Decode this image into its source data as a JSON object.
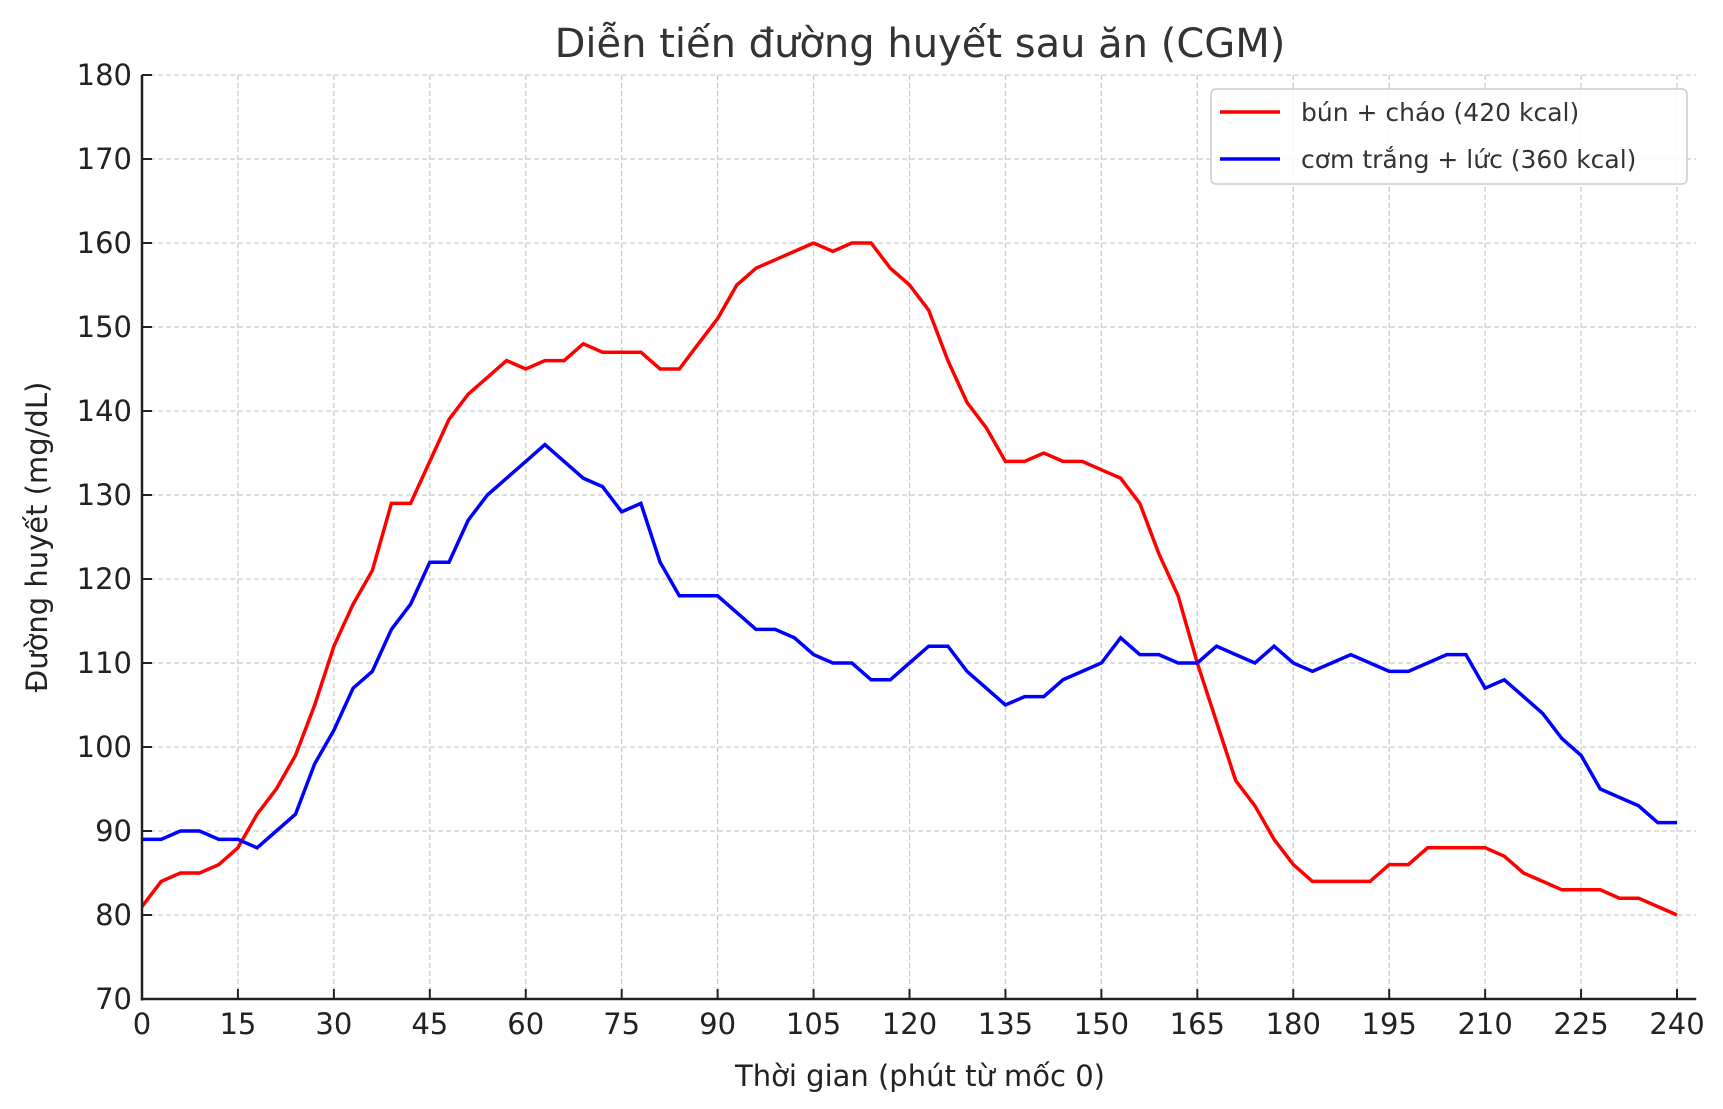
{
  "chart_data": {
    "type": "line",
    "title": "Diễn tiến đường huyết sau ăn (CGM)",
    "xlabel": "Thời gian (phút từ mốc 0)",
    "ylabel": "Đường huyết (mg/dL)",
    "xlim": [
      0,
      243
    ],
    "ylim": [
      70,
      180
    ],
    "xticks": [
      0,
      15,
      30,
      45,
      60,
      75,
      90,
      105,
      120,
      135,
      150,
      165,
      180,
      195,
      210,
      225,
      240
    ],
    "yticks": [
      70,
      80,
      90,
      100,
      110,
      120,
      130,
      140,
      150,
      160,
      170,
      180
    ],
    "grid": true,
    "legend_position": "upper right",
    "x": [
      0,
      3,
      6,
      9,
      12,
      15,
      18,
      21,
      24,
      27,
      30,
      33,
      36,
      39,
      42,
      45,
      48,
      51,
      54,
      57,
      60,
      63,
      66,
      69,
      72,
      75,
      78,
      81,
      84,
      87,
      90,
      93,
      96,
      99,
      102,
      105,
      108,
      111,
      114,
      117,
      120,
      123,
      126,
      129,
      132,
      135,
      138,
      141,
      144,
      147,
      150,
      153,
      156,
      159,
      162,
      165,
      168,
      171,
      174,
      177,
      180,
      183,
      186,
      189,
      192,
      195,
      198,
      201,
      204,
      207,
      210,
      213,
      216,
      219,
      222,
      225,
      228,
      231,
      234,
      237,
      240
    ],
    "series": [
      {
        "name": "bún + cháo (420 kcal)",
        "color": "#ff0000",
        "values": [
          81,
          84,
          85,
          85,
          86,
          88,
          92,
          95,
          99,
          105,
          112,
          117,
          121,
          129,
          129,
          134,
          139,
          142,
          144,
          146,
          145,
          146,
          146,
          148,
          147,
          147,
          147,
          145,
          145,
          148,
          151,
          155,
          157,
          158,
          159,
          160,
          159,
          160,
          160,
          157,
          155,
          152,
          146,
          141,
          138,
          134,
          134,
          135,
          134,
          134,
          133,
          132,
          129,
          123,
          118,
          110,
          103,
          96,
          93,
          89,
          86,
          84,
          84,
          84,
          84,
          86,
          86,
          88,
          88,
          88,
          88,
          87,
          85,
          84,
          83,
          83,
          83,
          82,
          82,
          81,
          80
        ]
      },
      {
        "name": "cơm trắng + lức (360 kcal)",
        "color": "#0000ff",
        "values": [
          89,
          89,
          90,
          90,
          89,
          89,
          88,
          90,
          92,
          98,
          102,
          107,
          109,
          114,
          117,
          122,
          122,
          127,
          130,
          132,
          134,
          136,
          134,
          132,
          131,
          128,
          129,
          122,
          118,
          118,
          118,
          116,
          114,
          114,
          113,
          111,
          110,
          110,
          108,
          108,
          110,
          112,
          112,
          109,
          107,
          105,
          106,
          106,
          108,
          109,
          110,
          113,
          111,
          111,
          110,
          110,
          112,
          111,
          110,
          112,
          110,
          109,
          110,
          111,
          110,
          109,
          109,
          110,
          111,
          111,
          107,
          108,
          106,
          104,
          101,
          99,
          95,
          94,
          93,
          91,
          91
        ]
      }
    ]
  }
}
